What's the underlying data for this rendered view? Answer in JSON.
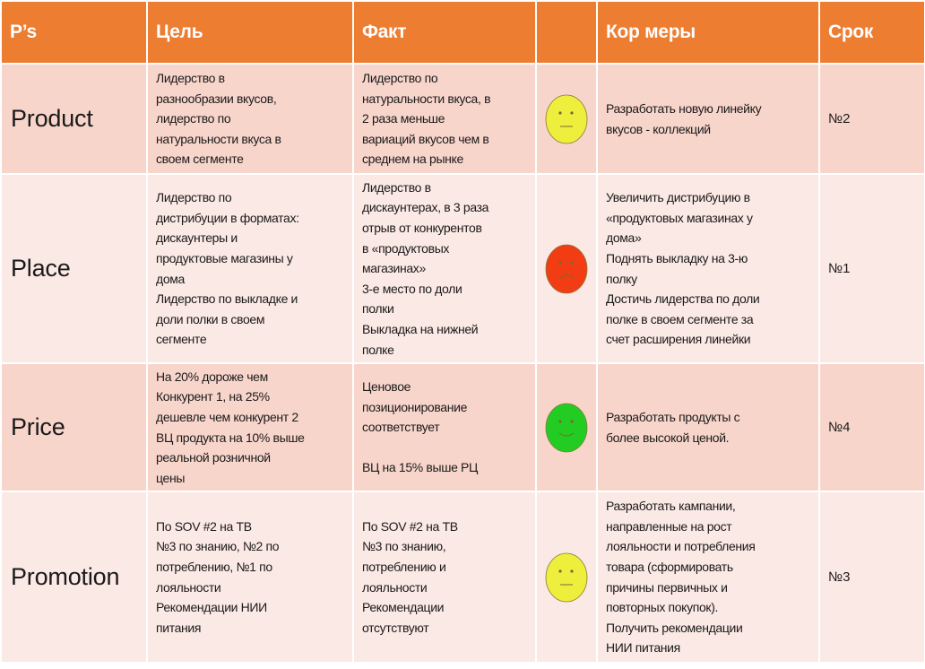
{
  "header": {
    "ps": "P’s",
    "goal": "Цель",
    "fact": "Факт",
    "status": "",
    "measures": "Кор меры",
    "deadline": "Срок"
  },
  "rows": [
    {
      "p": "Product",
      "goal": "Лидерство в\nразнообразии вкусов,\nлидерство по\nнатуральности вкуса в\nсвоем сегменте",
      "fact": "Лидерство по\nнатуральности вкуса,  в\n2 раза меньше\nвариаций  вкусов чем в\nсреднем на рынке",
      "status": "neutral",
      "status_icon": "neutral-face-icon",
      "color": "#EEEE3C",
      "measures": "Разработать новую линейку\nвкусов - коллекций",
      "deadline": "№2"
    },
    {
      "p": "Place",
      "goal": "Лидерство по\nдистрибуции в форматах:\nдискаунтеры и\nпродуктовые магазины у\nдома\nЛидерство по выкладке и\nдоли полки в своем\nсегменте",
      "fact": "Лидерство в\nдискаунтерах, в 3 раза\nотрыв от конкурентов\nв «продуктовых\nмагазинах»\n3-е место по доли\nполки\nВыкладка на нижней\nполке",
      "status": "negative",
      "status_icon": "sad-face-icon",
      "color": "#F23C14",
      "measures": "Увеличить дистрибуцию в\n«продуктовых магазинах у\nдома»\nПоднять выкладку на 3-ю\nполку\nДостичь лидерства по доли\nполке в своем сегменте за\nсчет расширения линейки",
      "deadline": "№1"
    },
    {
      "p": "Price",
      "goal": "На 20% дороже чем\nКонкурент 1, на 25%\nдешевле чем конкурент 2\nВЦ продукта на 10% выше\nреальной розничной\nцены",
      "fact": "Ценовое\nпозиционирование\nсоответствует\n\nВЦ на 15% выше РЦ",
      "status": "positive",
      "status_icon": "smile-face-icon",
      "color": "#22CC22",
      "measures": "Разработать продукты с\nболее высокой ценой.",
      "deadline": "№4"
    },
    {
      "p": "Promotion",
      "goal": "По SOV #2 на ТВ\n№3 по знанию, №2 по\nпотреблению, №1 по\nлояльности\nРекомендации НИИ\nпитания",
      "fact": "По SOV #2 на ТВ\n№3 по знанию,\nпотреблению и\nлояльности\nРекомендации\nотсутствуют",
      "status": "neutral",
      "status_icon": "neutral-face-icon",
      "color": "#EEEE3C",
      "measures": "Разработать кампании,\nнаправленные на рост\nлояльности и потребления\nтовара (сформировать\nпричины первичных и\nповторных покупок).\nПолучить рекомендации\nНИИ питания",
      "deadline": "№3"
    }
  ],
  "colors": {
    "header": "#ED7D31",
    "row_dark": "#F8D5CB",
    "row_light": "#FBE9E5"
  }
}
